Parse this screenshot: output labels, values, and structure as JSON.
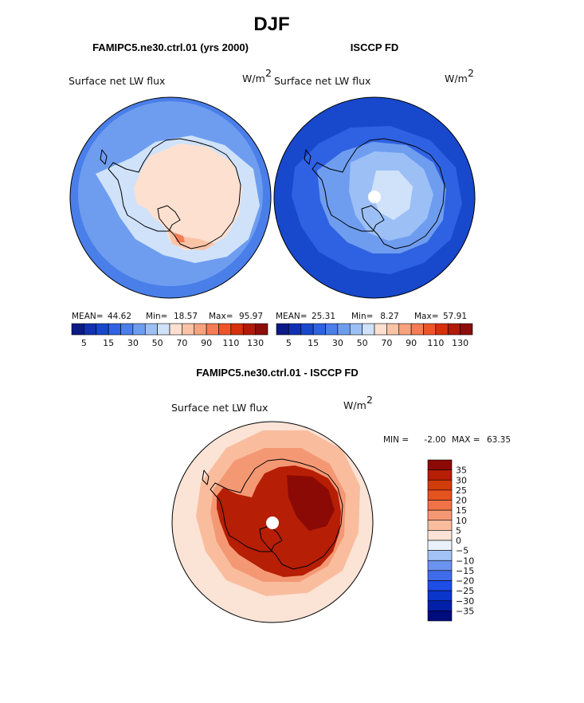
{
  "figure": {
    "season": "DJF",
    "unit_base": "W/m",
    "unit_exp": "2"
  },
  "colors": {
    "seq_palette": [
      "#0c1a86",
      "#1230b2",
      "#1848cc",
      "#2f62e2",
      "#4a7ee9",
      "#6e9df0",
      "#9cc0f6",
      "#cfe2fa",
      "#fde0d0",
      "#fbc3a6",
      "#f8a27e",
      "#f57c55",
      "#ef5428",
      "#d8300c",
      "#b01a06",
      "#8c0d0b"
    ],
    "div_palette": [
      "#000b7e",
      "#0020a8",
      "#0a36cc",
      "#1d4ee6",
      "#3f6de9",
      "#6a93ef",
      "#a3c3f6",
      "#e9f1fb",
      "#fbe3d6",
      "#f9bd9e",
      "#f49874",
      "#ef7346",
      "#e5531f",
      "#d03c0a",
      "#b61e05",
      "#8c0a05"
    ],
    "land_outline": "#000000"
  },
  "chart_data": [
    {
      "type": "heatmap",
      "panel": "model",
      "title": "FAMIPC5.ne30.ctrl.01 (yrs 2000)",
      "variable": "Surface net LW flux",
      "unit": "W/m2",
      "projection": "polar stereographic, south pole",
      "stats": {
        "mean_label": "MEAN=",
        "mean": "44.62",
        "min_label": "Min=",
        "min": "18.57",
        "max_label": "Max=",
        "max": "95.97"
      },
      "levels": [
        0,
        5,
        10,
        15,
        20,
        30,
        40,
        50,
        60,
        70,
        80,
        90,
        100,
        110,
        120,
        130
      ],
      "colorbar_tick_labels": [
        "5",
        "15",
        "30",
        "50",
        "70",
        "90",
        "110",
        "130"
      ],
      "field": {
        "open_ocean": 20,
        "southern_ocean": 30,
        "coastal_ocean": 50,
        "east_antarctica": 62,
        "ice_shelf_margin": 78,
        "peninsula_tip": 95.97
      }
    },
    {
      "type": "heatmap",
      "panel": "obs",
      "title": "ISCCP FD",
      "variable": "Surface net LW flux",
      "unit": "W/m2",
      "projection": "polar stereographic, south pole",
      "stats": {
        "mean_label": "MEAN=",
        "mean": "25.31",
        "min_label": "Min=",
        "min": "8.27",
        "max_label": "Max=",
        "max": "57.91"
      },
      "levels": [
        0,
        5,
        10,
        15,
        20,
        30,
        40,
        50,
        60,
        70,
        80,
        90,
        100,
        110,
        120,
        130
      ],
      "colorbar_tick_labels": [
        "5",
        "15",
        "30",
        "50",
        "70",
        "90",
        "110",
        "130"
      ],
      "field": {
        "open_ocean": 12,
        "southern_ocean": 18,
        "coastal_ocean": 30,
        "east_antarctica": 42,
        "antarctic_plateau": 57.91
      }
    },
    {
      "type": "heatmap",
      "panel": "diff",
      "title": "FAMIPC5.ne30.ctrl.01 - ISCCP FD",
      "variable": "Surface net LW flux",
      "unit": "W/m2",
      "projection": "polar stereographic, south pole",
      "stats": {
        "min_label": "MIN =",
        "min": "-2.00",
        "max_label": "MAX =",
        "max": "63.35"
      },
      "levels": [
        -40,
        -35,
        -30,
        -25,
        -20,
        -15,
        -10,
        -5,
        0,
        5,
        10,
        15,
        20,
        25,
        30,
        35,
        40
      ],
      "colorbar_tick_labels": [
        "35",
        "30",
        "25",
        "20",
        "15",
        "10",
        "5",
        "0",
        "−5",
        "−10",
        "−15",
        "−20",
        "−25",
        "−30",
        "−35"
      ],
      "field": {
        "open_ocean": 4,
        "southern_ocean": 9,
        "coastal_ocean": 14,
        "antarctica": 32,
        "east_antarctica_max": 38
      }
    }
  ]
}
